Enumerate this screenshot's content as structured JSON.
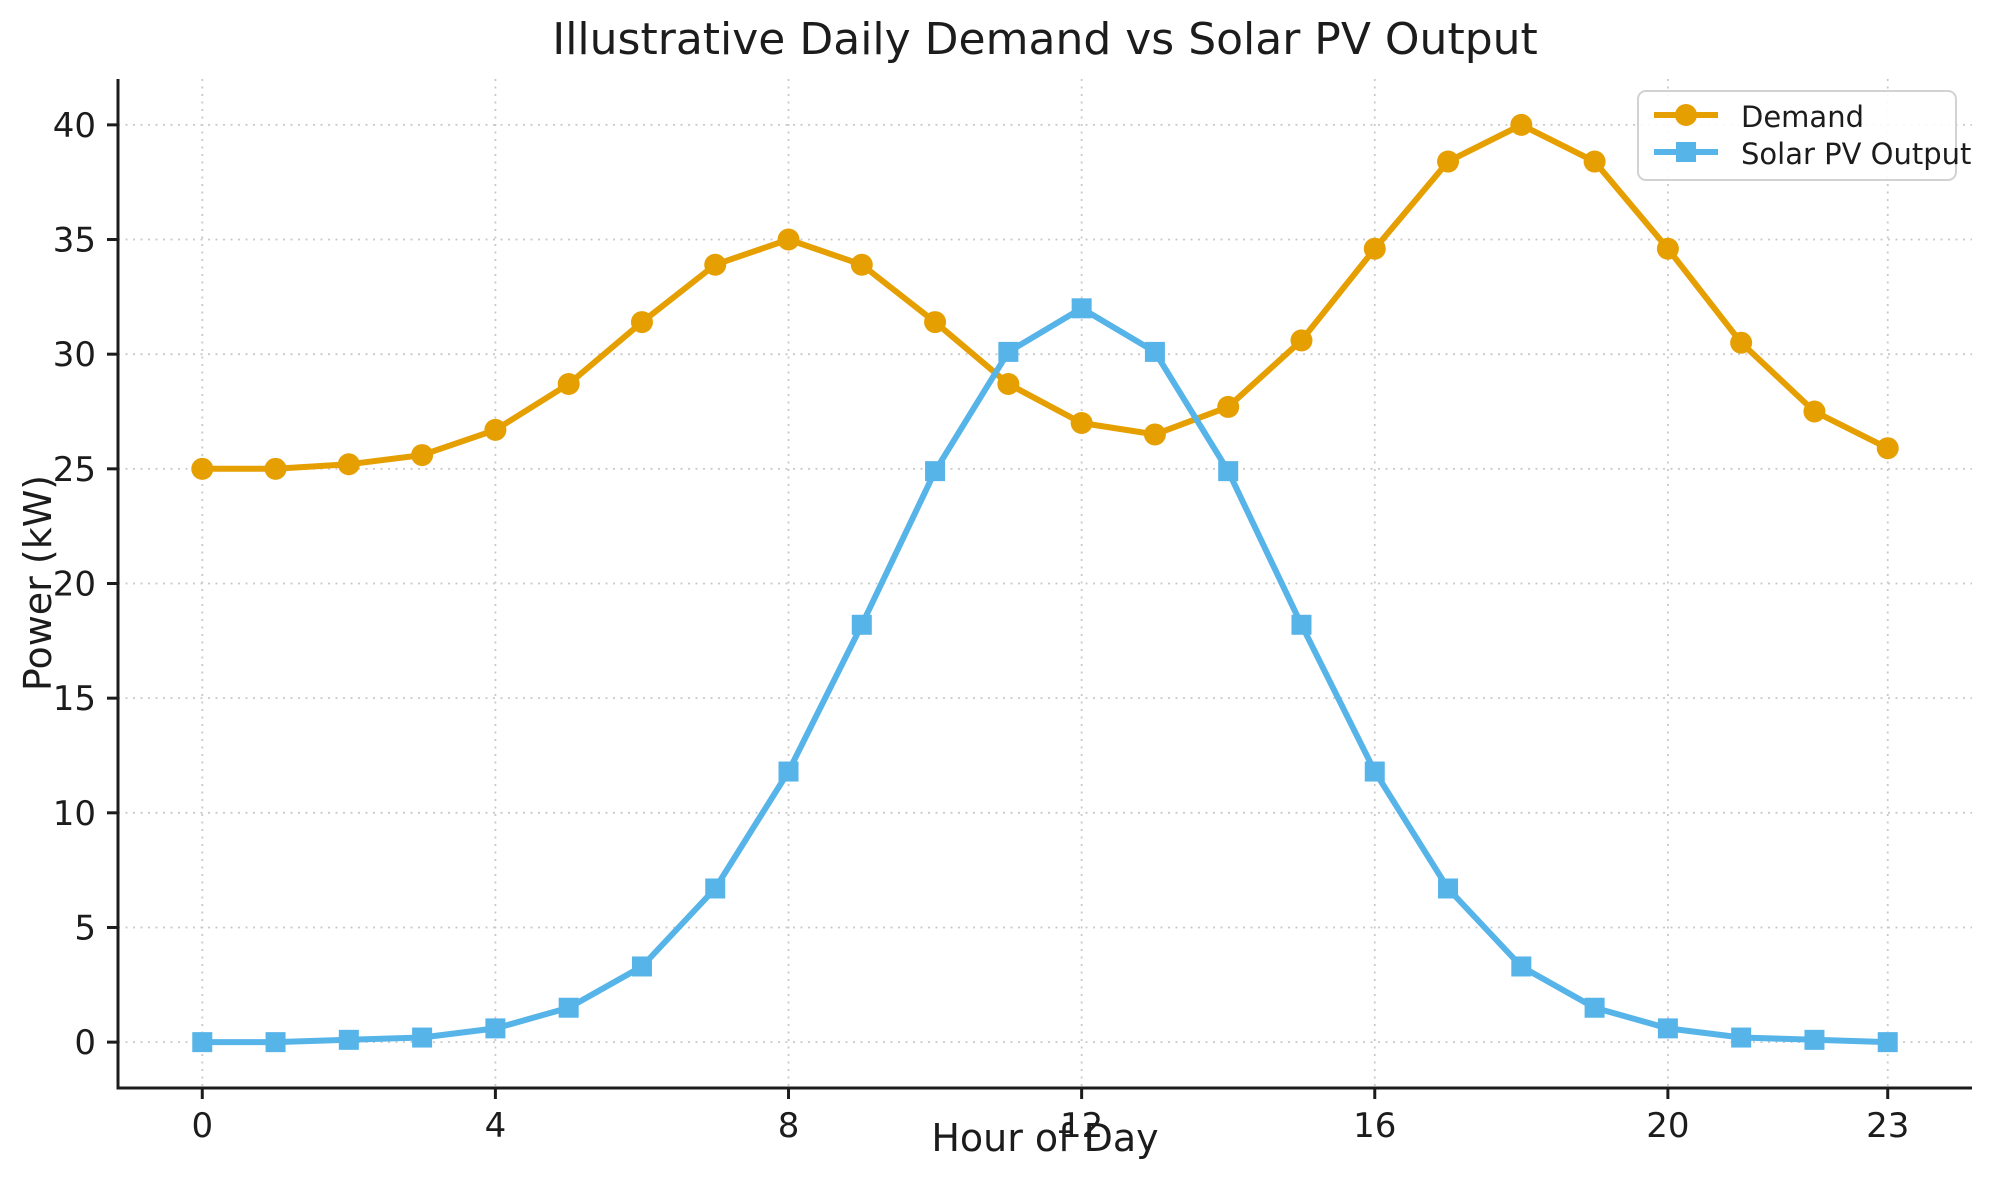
{
  "chart_data": {
    "type": "line",
    "title": "Illustrative Daily Demand vs Solar PV Output",
    "xlabel": "Hour of Day",
    "ylabel": "Power (kW)",
    "x": [
      0,
      1,
      2,
      3,
      4,
      5,
      6,
      7,
      8,
      9,
      10,
      11,
      12,
      13,
      14,
      15,
      16,
      17,
      18,
      19,
      20,
      21,
      22,
      23
    ],
    "series": [
      {
        "name": "Demand",
        "color": "#E69F00",
        "marker": "circle",
        "values": [
          25.0,
          25.0,
          25.2,
          25.6,
          26.7,
          28.7,
          31.4,
          33.9,
          35.0,
          33.9,
          31.4,
          28.7,
          27.0,
          26.5,
          27.7,
          30.6,
          34.6,
          38.4,
          40.0,
          38.4,
          34.6,
          30.5,
          27.5,
          25.9
        ]
      },
      {
        "name": "Solar PV Output",
        "color": "#56B4E9",
        "marker": "square",
        "values": [
          0.0,
          0.0,
          0.1,
          0.2,
          0.6,
          1.5,
          3.3,
          6.7,
          11.8,
          18.2,
          24.9,
          30.1,
          32.0,
          30.1,
          24.9,
          18.2,
          11.8,
          6.7,
          3.3,
          1.5,
          0.6,
          0.2,
          0.1,
          0.0
        ]
      }
    ],
    "x_ticks": [
      0,
      4,
      8,
      12,
      16,
      20,
      23
    ],
    "y_ticks": [
      0,
      5,
      10,
      15,
      20,
      25,
      30,
      35,
      40
    ],
    "xlim": [
      -1.15,
      24.15
    ],
    "ylim": [
      -2,
      42
    ],
    "grid": "dotted",
    "legend_position": "upper right",
    "colors": {
      "grid": "#c9c9c9",
      "axis": "#1c1c1c",
      "text": "#1c1c1c",
      "background": "#ffffff"
    }
  }
}
